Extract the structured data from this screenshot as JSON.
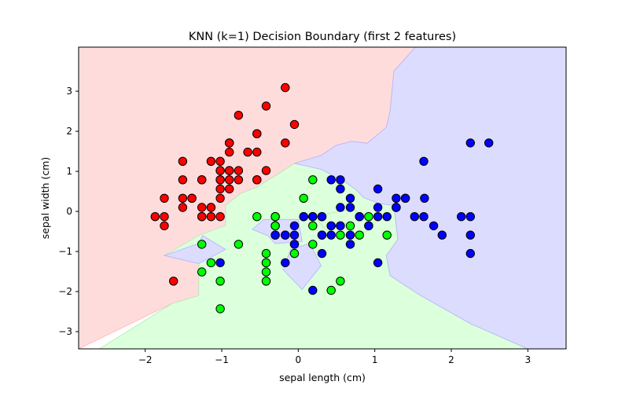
{
  "chart_data": {
    "type": "scatter",
    "title": "KNN (k=1) Decision Boundary (first 2 features)",
    "xlabel": "sepal length (cm)",
    "ylabel": "sepal width (cm)",
    "xlim": [
      -2.87,
      3.5
    ],
    "ylim": [
      -3.43,
      4.1
    ],
    "xticks": [
      -2,
      -1,
      0,
      1,
      2,
      3
    ],
    "yticks": [
      -3,
      -2,
      -1,
      0,
      1,
      2,
      3
    ],
    "xtick_labels": [
      "−2",
      "−1",
      "0",
      "1",
      "2",
      "3"
    ],
    "ytick_labels": [
      "−3",
      "−2",
      "−1",
      "0",
      "1",
      "2",
      "3"
    ],
    "grid": false,
    "legend": "none",
    "region_colors": {
      "red": "#ffdcdc",
      "green": "#dcffdc",
      "blue": "#dcdcff"
    },
    "regions": [
      {
        "class": "red",
        "polygon": [
          [
            -2.87,
            4.1
          ],
          [
            1.53,
            4.1
          ],
          [
            1.25,
            3.5
          ],
          [
            1.2,
            2.5
          ],
          [
            1.15,
            2.1
          ],
          [
            0.9,
            1.7
          ],
          [
            0.7,
            1.75
          ],
          [
            0.5,
            1.65
          ],
          [
            0.3,
            1.4
          ],
          [
            -0.05,
            1.2
          ],
          [
            -0.25,
            0.95
          ],
          [
            -0.55,
            0.6
          ],
          [
            -0.75,
            0.45
          ],
          [
            -0.95,
            0.15
          ],
          [
            -0.95,
            -0.35
          ],
          [
            -1.25,
            -0.6
          ],
          [
            -1.3,
            -0.8
          ],
          [
            -1.75,
            -1.1
          ],
          [
            -1.3,
            -1.3
          ],
          [
            -1.3,
            -2.1
          ],
          [
            -1.65,
            -2.3
          ],
          [
            -2.87,
            -3.43
          ]
        ]
      },
      {
        "class": "green",
        "polygon": [
          [
            -1.3,
            -0.6
          ],
          [
            -0.95,
            -0.35
          ],
          [
            -0.95,
            0.15
          ],
          [
            -0.75,
            0.45
          ],
          [
            -0.55,
            0.6
          ],
          [
            -0.25,
            0.95
          ],
          [
            -0.05,
            1.2
          ],
          [
            0.3,
            1.05
          ],
          [
            0.6,
            0.75
          ],
          [
            0.75,
            0.55
          ],
          [
            0.85,
            0.35
          ],
          [
            1.05,
            0.2
          ],
          [
            1.25,
            0.15
          ],
          [
            1.3,
            -0.7
          ],
          [
            1.15,
            -1.1
          ],
          [
            1.2,
            -1.6
          ],
          [
            1.6,
            -2.1
          ],
          [
            2.25,
            -2.8
          ],
          [
            3.0,
            -3.43
          ],
          [
            -2.6,
            -3.43
          ],
          [
            -1.65,
            -2.3
          ],
          [
            -1.3,
            -2.1
          ],
          [
            -1.3,
            -1.3
          ],
          [
            -1.75,
            -1.1
          ]
        ]
      },
      {
        "class": "blue",
        "polygon": [
          [
            1.53,
            4.1
          ],
          [
            3.5,
            4.1
          ],
          [
            3.5,
            -3.43
          ],
          [
            3.0,
            -3.43
          ],
          [
            2.25,
            -2.8
          ],
          [
            1.6,
            -2.1
          ],
          [
            1.2,
            -1.6
          ],
          [
            1.15,
            -1.1
          ],
          [
            1.3,
            -0.7
          ],
          [
            1.25,
            0.15
          ],
          [
            1.05,
            0.2
          ],
          [
            0.85,
            0.35
          ],
          [
            0.75,
            0.55
          ],
          [
            0.6,
            0.75
          ],
          [
            0.3,
            1.05
          ],
          [
            -0.05,
            1.2
          ],
          [
            0.3,
            1.4
          ],
          [
            0.5,
            1.65
          ],
          [
            0.7,
            1.75
          ],
          [
            0.9,
            1.7
          ],
          [
            1.15,
            2.1
          ],
          [
            1.2,
            2.5
          ],
          [
            1.25,
            3.5
          ]
        ]
      },
      {
        "class": "blue",
        "polygon": [
          [
            -1.75,
            -1.1
          ],
          [
            -1.3,
            -0.8
          ],
          [
            -1.25,
            -0.6
          ],
          [
            -0.95,
            -0.95
          ],
          [
            -1.3,
            -1.3
          ]
        ]
      },
      {
        "class": "blue",
        "polygon": [
          [
            -0.6,
            -0.45
          ],
          [
            -0.45,
            -0.2
          ],
          [
            0.0,
            -0.2
          ],
          [
            0.05,
            -0.75
          ],
          [
            -0.3,
            -0.8
          ],
          [
            -0.4,
            -0.6
          ]
        ]
      },
      {
        "class": "green",
        "polygon": [
          [
            0.4,
            -0.05
          ],
          [
            0.7,
            0.05
          ],
          [
            0.95,
            -0.15
          ],
          [
            0.9,
            -0.5
          ],
          [
            0.55,
            -0.6
          ],
          [
            0.35,
            -0.45
          ],
          [
            0.25,
            -0.2
          ]
        ]
      },
      {
        "class": "blue",
        "polygon": [
          [
            -0.1,
            -0.95
          ],
          [
            0.15,
            -0.8
          ],
          [
            0.3,
            -1.35
          ],
          [
            0.05,
            -1.95
          ],
          [
            -0.2,
            -1.45
          ]
        ]
      }
    ],
    "series": [
      {
        "class": "red",
        "color": "#ff0000",
        "points": [
          [
            -0.9,
            1.02
          ],
          [
            -1.14,
            -0.13
          ],
          [
            -1.39,
            0.33
          ],
          [
            -1.51,
            0.1
          ],
          [
            -1.02,
            1.25
          ],
          [
            -0.54,
            1.94
          ],
          [
            -1.51,
            0.79
          ],
          [
            -1.02,
            0.79
          ],
          [
            -1.75,
            -0.36
          ],
          [
            -1.14,
            0.1
          ],
          [
            -0.54,
            1.48
          ],
          [
            -1.26,
            0.79
          ],
          [
            -1.26,
            -0.13
          ],
          [
            -1.87,
            -0.13
          ],
          [
            -0.05,
            2.17
          ],
          [
            -0.17,
            3.09
          ],
          [
            -0.54,
            1.94
          ],
          [
            -0.9,
            1.02
          ],
          [
            -0.17,
            1.71
          ],
          [
            -0.9,
            1.71
          ],
          [
            -0.54,
            0.79
          ],
          [
            -0.9,
            1.48
          ],
          [
            -1.51,
            1.25
          ],
          [
            -0.9,
            0.56
          ],
          [
            -1.26,
            0.79
          ],
          [
            -1.02,
            -0.13
          ],
          [
            -1.02,
            0.79
          ],
          [
            -0.78,
            1.02
          ],
          [
            -0.78,
            0.79
          ],
          [
            -1.39,
            0.33
          ],
          [
            -1.26,
            0.1
          ],
          [
            -0.54,
            0.79
          ],
          [
            -0.78,
            2.4
          ],
          [
            -0.42,
            2.63
          ],
          [
            -1.14,
            0.1
          ],
          [
            -1.02,
            0.33
          ],
          [
            -0.42,
            1.02
          ],
          [
            -1.14,
            1.25
          ],
          [
            -1.75,
            -0.13
          ],
          [
            -0.9,
            0.79
          ],
          [
            -1.02,
            1.02
          ],
          [
            -1.63,
            -1.74
          ],
          [
            -1.75,
            0.33
          ],
          [
            -1.02,
            1.02
          ],
          [
            -0.9,
            1.71
          ],
          [
            -1.26,
            -0.13
          ],
          [
            -0.9,
            1.71
          ],
          [
            -1.51,
            0.33
          ],
          [
            -0.66,
            1.48
          ],
          [
            -1.02,
            0.56
          ]
        ]
      },
      {
        "class": "green",
        "color": "#00ff00",
        "points": [
          [
            0.55,
            -0.59
          ],
          [
            -0.42,
            -1.51
          ],
          [
            0.19,
            -0.82
          ],
          [
            -1.14,
            -1.28
          ],
          [
            0.43,
            -1.97
          ],
          [
            -1.02,
            -2.43
          ],
          [
            -0.3,
            -0.13
          ],
          [
            -0.42,
            -1.74
          ],
          [
            0.07,
            -0.13
          ],
          [
            -0.05,
            -0.82
          ],
          [
            -0.3,
            -0.13
          ],
          [
            0.31,
            -0.13
          ],
          [
            -0.3,
            -0.36
          ],
          [
            0.55,
            -1.74
          ],
          [
            -1.26,
            -0.82
          ],
          [
            -0.42,
            -1.28
          ],
          [
            0.19,
            -0.36
          ],
          [
            -0.05,
            -1.05
          ],
          [
            -0.42,
            -1.28
          ],
          [
            -0.3,
            -0.59
          ],
          [
            -0.54,
            -0.13
          ],
          [
            0.8,
            -0.59
          ],
          [
            -0.78,
            -0.82
          ],
          [
            -0.42,
            -1.05
          ],
          [
            -1.02,
            -1.74
          ],
          [
            -1.26,
            -1.51
          ],
          [
            0.07,
            0.33
          ],
          [
            -0.3,
            -0.36
          ],
          [
            1.16,
            -0.59
          ],
          [
            0.43,
            -0.36
          ],
          [
            -0.17,
            -0.59
          ],
          [
            0.55,
            -0.36
          ],
          [
            0.31,
            -0.59
          ],
          [
            0.19,
            0.79
          ],
          [
            1.4,
            0.33
          ],
          [
            0.68,
            -0.36
          ],
          [
            0.92,
            -0.13
          ],
          [
            0.92,
            -0.36
          ]
        ]
      },
      {
        "class": "blue",
        "color": "#0000ff",
        "points": [
          [
            1.4,
            0.33
          ],
          [
            0.68,
            0.33
          ],
          [
            1.28,
            0.1
          ],
          [
            -0.05,
            -0.82
          ],
          [
            0.8,
            -0.13
          ],
          [
            0.19,
            -0.13
          ],
          [
            0.55,
            0.56
          ],
          [
            -0.17,
            -0.59
          ],
          [
            0.31,
            -0.59
          ],
          [
            0.68,
            0.1
          ],
          [
            1.04,
            0.1
          ],
          [
            0.68,
            -0.59
          ],
          [
            -0.3,
            -0.59
          ],
          [
            1.28,
            0.33
          ],
          [
            0.43,
            -0.59
          ],
          [
            0.68,
            -0.82
          ],
          [
            1.04,
            0.56
          ],
          [
            1.65,
            0.33
          ],
          [
            0.31,
            -1.05
          ],
          [
            1.04,
            -1.28
          ],
          [
            0.55,
            -0.36
          ],
          [
            1.28,
            0.1
          ],
          [
            0.07,
            -0.13
          ],
          [
            2.25,
            1.71
          ],
          [
            1.64,
            1.25
          ],
          [
            2.49,
            1.71
          ],
          [
            2.25,
            -0.59
          ],
          [
            2.25,
            -1.05
          ],
          [
            1.52,
            -0.13
          ],
          [
            0.55,
            0.79
          ],
          [
            1.16,
            -0.13
          ],
          [
            1.77,
            -0.36
          ],
          [
            2.13,
            -0.13
          ],
          [
            1.88,
            -0.59
          ],
          [
            0.8,
            -0.13
          ],
          [
            1.04,
            -0.13
          ],
          [
            0.43,
            0.79
          ],
          [
            0.55,
            0.1
          ],
          [
            0.31,
            -0.13
          ],
          [
            -0.17,
            -1.28
          ],
          [
            -1.02,
            -1.28
          ],
          [
            0.19,
            -1.97
          ],
          [
            -0.05,
            -0.59
          ],
          [
            0.43,
            -0.36
          ],
          [
            1.28,
            0.1
          ],
          [
            2.25,
            -0.13
          ],
          [
            0.92,
            -0.36
          ],
          [
            0.19,
            -0.13
          ],
          [
            -0.05,
            -0.36
          ],
          [
            1.64,
            -0.13
          ]
        ]
      }
    ]
  }
}
